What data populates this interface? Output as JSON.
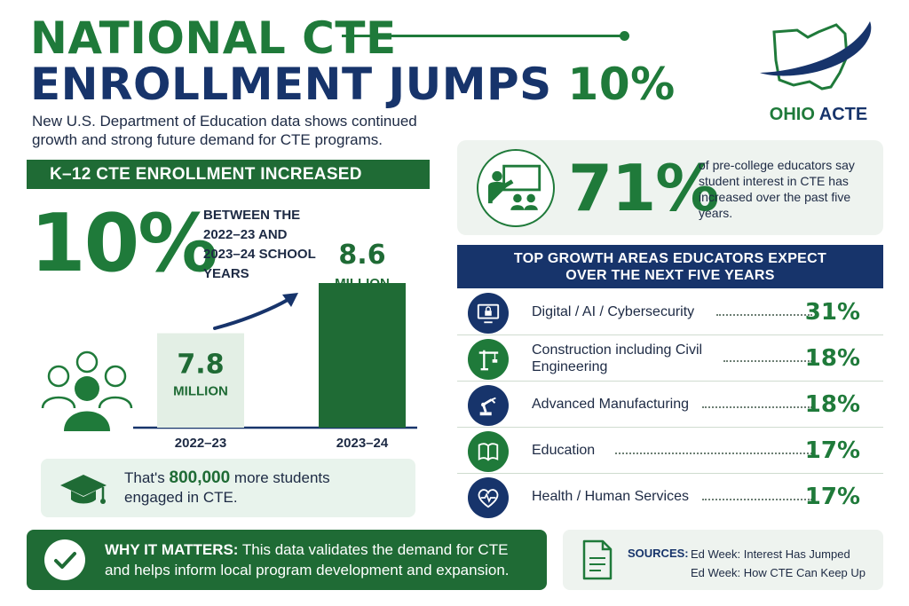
{
  "header": {
    "title_line1": "NATIONAL CTE",
    "title_line2_main": "ENROLLMENT JUMPS",
    "title_line2_accent": "10%",
    "subtitle": "New U.S. Department of Education data shows continued growth and strong future demand for CTE programs."
  },
  "logo": {
    "ohio": "OHIO",
    "acte": "ACTE"
  },
  "k12": {
    "banner": "K–12 CTE ENROLLMENT INCREASED",
    "big_percent": "10%",
    "between_text": "BETWEEN THE 2022–23 AND 2023–24 SCHOOL YEARS"
  },
  "chart_data": {
    "type": "bar",
    "categories": [
      "2022–23",
      "2023–24"
    ],
    "values": [
      7.8,
      8.6
    ],
    "value_labels": [
      "7.8",
      "8.6"
    ],
    "unit_label": "MILLION",
    "colors": [
      "#e3efe5",
      "#1f6b35"
    ],
    "label_colors": [
      "#1f6b35",
      "#1f6b35"
    ],
    "title": "",
    "xlabel": "",
    "ylabel": "",
    "arrow": true
  },
  "students": {
    "prefix": "That's",
    "number": "800,000",
    "suffix": "more students engaged in CTE."
  },
  "educators_stat": {
    "big": "71%",
    "text": "of pre-college educators say student interest in CTE has increased over the past five years."
  },
  "growth": {
    "banner_line1": "TOP GROWTH AREAS EDUCATORS EXPECT",
    "banner_line2": "OVER THE NEXT FIVE YEARS",
    "items": [
      {
        "label": "Digital / AI / Cybersecurity",
        "pct": "31%",
        "icon": "computer-lock-icon",
        "color": "navy"
      },
      {
        "label": "Construction including Civil Engineering",
        "pct": "18%",
        "icon": "crane-icon",
        "color": "green"
      },
      {
        "label": "Advanced Manufacturing",
        "pct": "18%",
        "icon": "robot-arm-icon",
        "color": "navy"
      },
      {
        "label": "Education",
        "pct": "17%",
        "icon": "book-icon",
        "color": "green"
      },
      {
        "label": "Health / Human Services",
        "pct": "17%",
        "icon": "heart-pulse-icon",
        "color": "navy"
      }
    ]
  },
  "why": {
    "label": "WHY IT MATTERS:",
    "text": "This data validates the demand for CTE and helps inform local program development and expansion."
  },
  "sources": {
    "label": "SOURCES:",
    "items": [
      "Ed Week: Interest Has Jumped",
      "Ed Week: How CTE Can Keep Up"
    ]
  }
}
